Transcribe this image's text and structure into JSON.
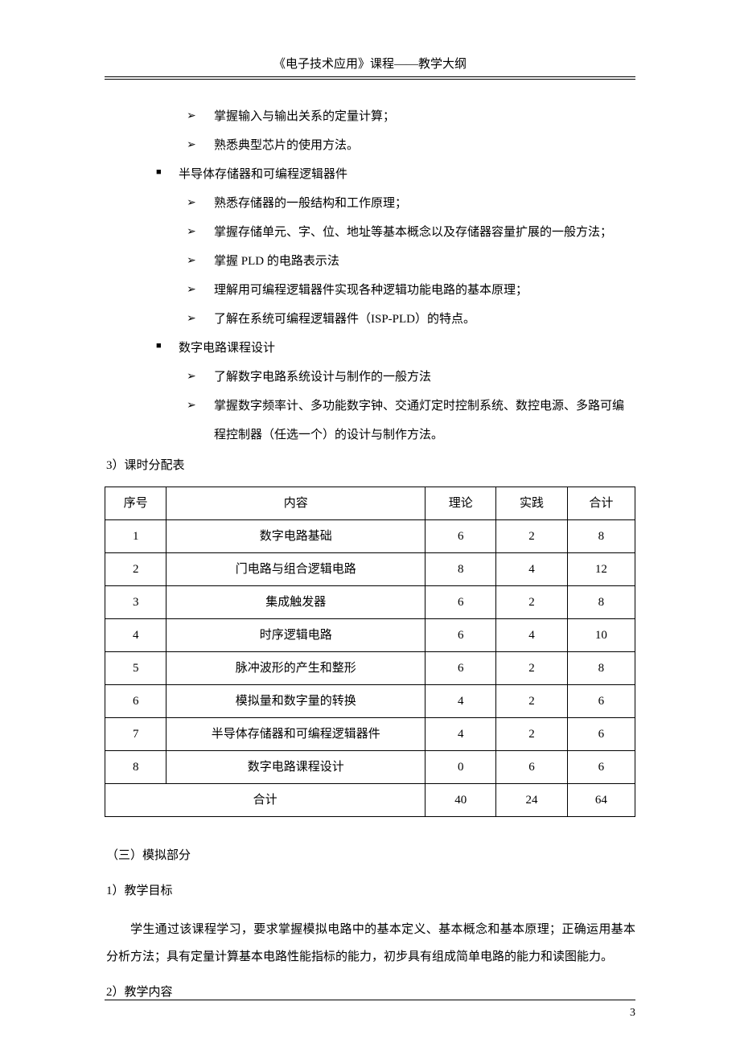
{
  "header": {
    "title": "《电子技术应用》课程——教学大纲"
  },
  "bullets": {
    "l2a": "掌握输入与输出关系的定量计算；",
    "l2b": "熟悉典型芯片的使用方法。",
    "l1a": "半导体存储器和可编程逻辑器件",
    "l2c": "熟悉存储器的一般结构和工作原理；",
    "l2d": "掌握存储单元、字、位、地址等基本概念以及存储器容量扩展的一般方法；",
    "l2e": "掌握 PLD 的电路表示法",
    "l2f": "理解用可编程逻辑器件实现各种逻辑功能电路的基本原理；",
    "l2g": "了解在系统可编程逻辑器件（ISP-PLD）的特点。",
    "l1b": "数字电路课程设计",
    "l2h": "了解数字电路系统设计与制作的一般方法",
    "l2i": "掌握数字频率计、多功能数字钟、交通灯定时控制系统、数控电源、多路可编程控制器（任选一个）的设计与制作方法。"
  },
  "sections": {
    "s3": "3）课时分配表",
    "part3": "（三）模拟部分",
    "s1": "1）教学目标",
    "para": "学生通过该课程学习，要求掌握模拟电路中的基本定义、基本概念和基本原理；正确运用基本分析方法；具有定量计算基本电路性能指标的能力，初步具有组成简单电路的能力和读图能力。",
    "s2": "2）教学内容"
  },
  "table": {
    "headers": {
      "c1": "序号",
      "c2": "内容",
      "c3": "理论",
      "c4": "实践",
      "c5": "合计"
    },
    "rows": [
      {
        "c1": "1",
        "c2": "数字电路基础",
        "c3": "6",
        "c4": "2",
        "c5": "8"
      },
      {
        "c1": "2",
        "c2": "门电路与组合逻辑电路",
        "c3": "8",
        "c4": "4",
        "c5": "12"
      },
      {
        "c1": "3",
        "c2": "集成触发器",
        "c3": "6",
        "c4": "2",
        "c5": "8"
      },
      {
        "c1": "4",
        "c2": "时序逻辑电路",
        "c3": "6",
        "c4": "4",
        "c5": "10"
      },
      {
        "c1": "5",
        "c2": "脉冲波形的产生和整形",
        "c3": "6",
        "c4": "2",
        "c5": "8"
      },
      {
        "c1": "6",
        "c2": "模拟量和数字量的转换",
        "c3": "4",
        "c4": "2",
        "c5": "6"
      },
      {
        "c1": "7",
        "c2": "半导体存储器和可编程逻辑器件",
        "c3": "4",
        "c4": "2",
        "c5": "6"
      },
      {
        "c1": "8",
        "c2": "数字电路课程设计",
        "c3": "0",
        "c4": "6",
        "c5": "6"
      }
    ],
    "total": {
      "label": "合计",
      "c3": "40",
      "c4": "24",
      "c5": "64"
    }
  },
  "pageNumber": "3"
}
